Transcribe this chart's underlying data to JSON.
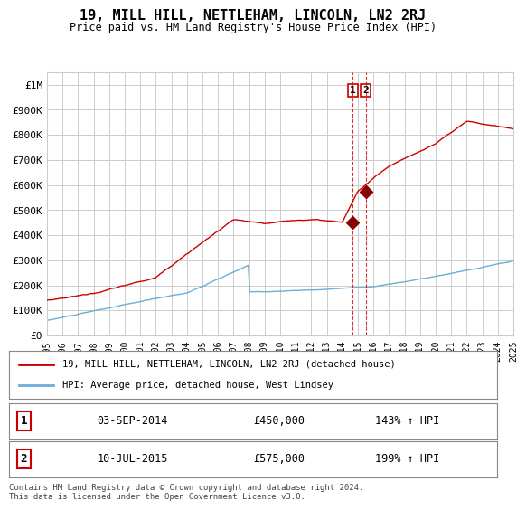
{
  "title": "19, MILL HILL, NETTLEHAM, LINCOLN, LN2 2RJ",
  "subtitle": "Price paid vs. HM Land Registry's House Price Index (HPI)",
  "hpi_label": "HPI: Average price, detached house, West Lindsey",
  "property_label": "19, MILL HILL, NETTLEHAM, LINCOLN, LN2 2RJ (detached house)",
  "footnote": "Contains HM Land Registry data © Crown copyright and database right 2024.\nThis data is licensed under the Open Government Licence v3.0.",
  "hpi_color": "#6baed6",
  "property_color": "#cc0000",
  "dot_color": "#8b0000",
  "vline_color": "#cc0000",
  "grid_color": "#cccccc",
  "background_color": "#ffffff",
  "sale1": {
    "date": "03-SEP-2014",
    "price": 450000,
    "hpi_pct": "143%",
    "label": "1"
  },
  "sale2": {
    "date": "10-JUL-2015",
    "price": 575000,
    "hpi_pct": "199%",
    "label": "2"
  },
  "ylim": [
    0,
    1050000
  ],
  "yticks": [
    0,
    100000,
    200000,
    300000,
    400000,
    500000,
    600000,
    700000,
    800000,
    900000,
    1000000
  ],
  "ytick_labels": [
    "£0",
    "£100K",
    "£200K",
    "£300K",
    "£400K",
    "£500K",
    "£600K",
    "£700K",
    "£800K",
    "£900K",
    "£1M"
  ]
}
